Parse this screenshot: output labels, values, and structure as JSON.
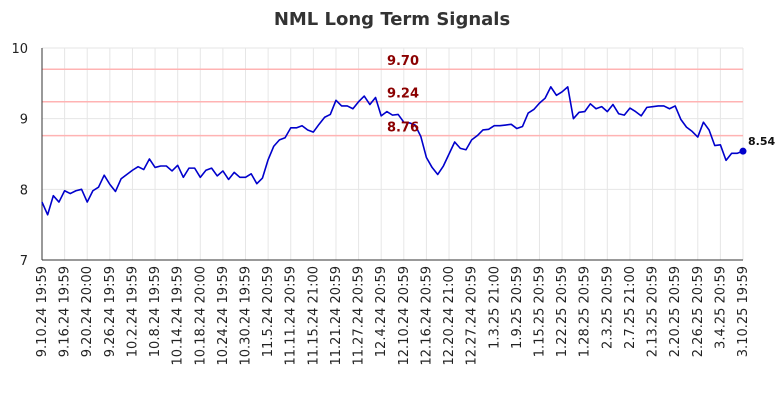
{
  "chart_data": {
    "type": "line",
    "title": "NML Long Term Signals",
    "xlabel": "",
    "ylabel": "",
    "ylim": [
      7,
      10
    ],
    "y_ticks": [
      "7",
      "8",
      "9",
      "10"
    ],
    "x_tick_labels": [
      "9.10.24 19:59",
      "9.16.24 19:59",
      "9.20.24 20:00",
      "9.26.24 19:59",
      "10.2.24 19:59",
      "10.8.24 19:59",
      "10.14.24 19:59",
      "10.18.24 20:00",
      "10.24.24 19:59",
      "10.30.24 19:59",
      "11.5.24 20:59",
      "11.11.24 20:59",
      "11.15.24 21:00",
      "11.21.24 20:59",
      "11.27.24 20:59",
      "12.4.24 20:59",
      "12.10.24 20:59",
      "12.16.24 20:59",
      "12.20.24 21:00",
      "12.27.24 20:59",
      "1.3.25 21:00",
      "1.9.25 20:59",
      "1.15.25 20:59",
      "1.22.25 20:59",
      "1.28.25 20:59",
      "2.3.25 20:59",
      "2.7.25 21:00",
      "2.13.25 20:59",
      "2.20.25 20:59",
      "2.26.25 20:59",
      "3.4.25 20:59",
      "3.10.25 19:59"
    ],
    "grid": true,
    "levels": [
      {
        "value": 9.7,
        "label": "9.70",
        "color": "#ffb3b3"
      },
      {
        "value": 9.24,
        "label": "9.24",
        "color": "#ffb3b3"
      },
      {
        "value": 8.76,
        "label": "8.76",
        "color": "#ffb3b3"
      }
    ],
    "series": [
      {
        "color": "#0000cc",
        "values": [
          7.82,
          7.64,
          7.91,
          7.82,
          7.98,
          7.94,
          7.98,
          8.0,
          7.82,
          7.98,
          8.03,
          8.2,
          8.07,
          7.97,
          8.15,
          8.21,
          8.27,
          8.32,
          8.28,
          8.43,
          8.31,
          8.33,
          8.33,
          8.26,
          8.34,
          8.17,
          8.3,
          8.3,
          8.17,
          8.27,
          8.3,
          8.19,
          8.26,
          8.14,
          8.24,
          8.17,
          8.17,
          8.22,
          8.08,
          8.16,
          8.42,
          8.61,
          8.7,
          8.73,
          8.87,
          8.87,
          8.9,
          8.84,
          8.81,
          8.92,
          9.02,
          9.06,
          9.26,
          9.18,
          9.18,
          9.14,
          9.24,
          9.32,
          9.2,
          9.3,
          9.04,
          9.1,
          9.05,
          9.06,
          8.95,
          8.94,
          8.91,
          8.75,
          8.45,
          8.31,
          8.21,
          8.33,
          8.5,
          8.67,
          8.58,
          8.56,
          8.7,
          8.76,
          8.84,
          8.85,
          8.9,
          8.9,
          8.91,
          8.92,
          8.86,
          8.89,
          9.08,
          9.13,
          9.22,
          9.29,
          9.45,
          9.33,
          9.38,
          9.45,
          9.0,
          9.09,
          9.1,
          9.21,
          9.14,
          9.17,
          9.1,
          9.2,
          9.07,
          9.05,
          9.15,
          9.1,
          9.04,
          9.16,
          9.17,
          9.18,
          9.18,
          9.14,
          9.18,
          8.99,
          8.88,
          8.82,
          8.74,
          8.95,
          8.84,
          8.62,
          8.63,
          8.41,
          8.51,
          8.51,
          8.54
        ]
      }
    ],
    "last_value_label": "8.54"
  }
}
